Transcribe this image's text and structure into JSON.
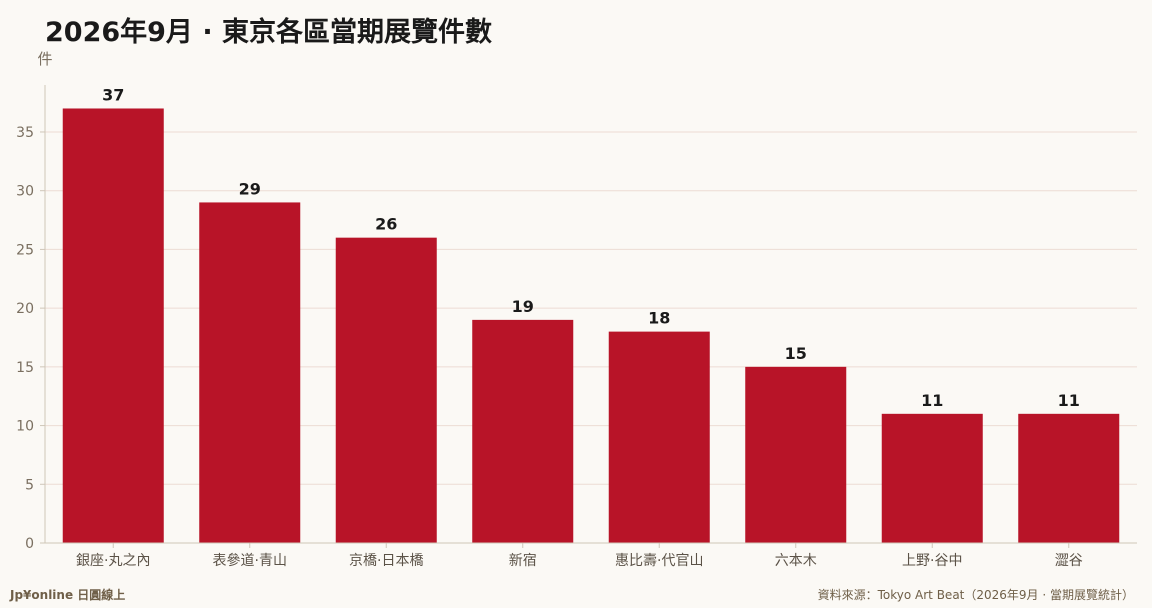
{
  "chart_data": {
    "type": "bar",
    "title": "2026年9月 · 東京各區當期展覽件數",
    "ylabel": "件",
    "xlabel": "",
    "categories": [
      "銀座·丸之內",
      "表參道·青山",
      "京橋·日本橋",
      "新宿",
      "惠比壽·代官山",
      "六本木",
      "上野·谷中",
      "澀谷"
    ],
    "values": [
      37,
      29,
      26,
      19,
      18,
      15,
      11,
      11
    ],
    "ylim": [
      0,
      39
    ],
    "yticks": [
      0,
      5,
      10,
      15,
      20,
      25,
      30,
      35
    ],
    "grid": true,
    "bar_color": "#b81428",
    "grid_color": "#ecdcd4",
    "axis_color": "#cfc6b8"
  },
  "footer": {
    "brand": "Jp¥online 日圓線上",
    "source": "資料來源：Tokyo Art Beat（2026年9月 · 當期展覽統計）"
  }
}
